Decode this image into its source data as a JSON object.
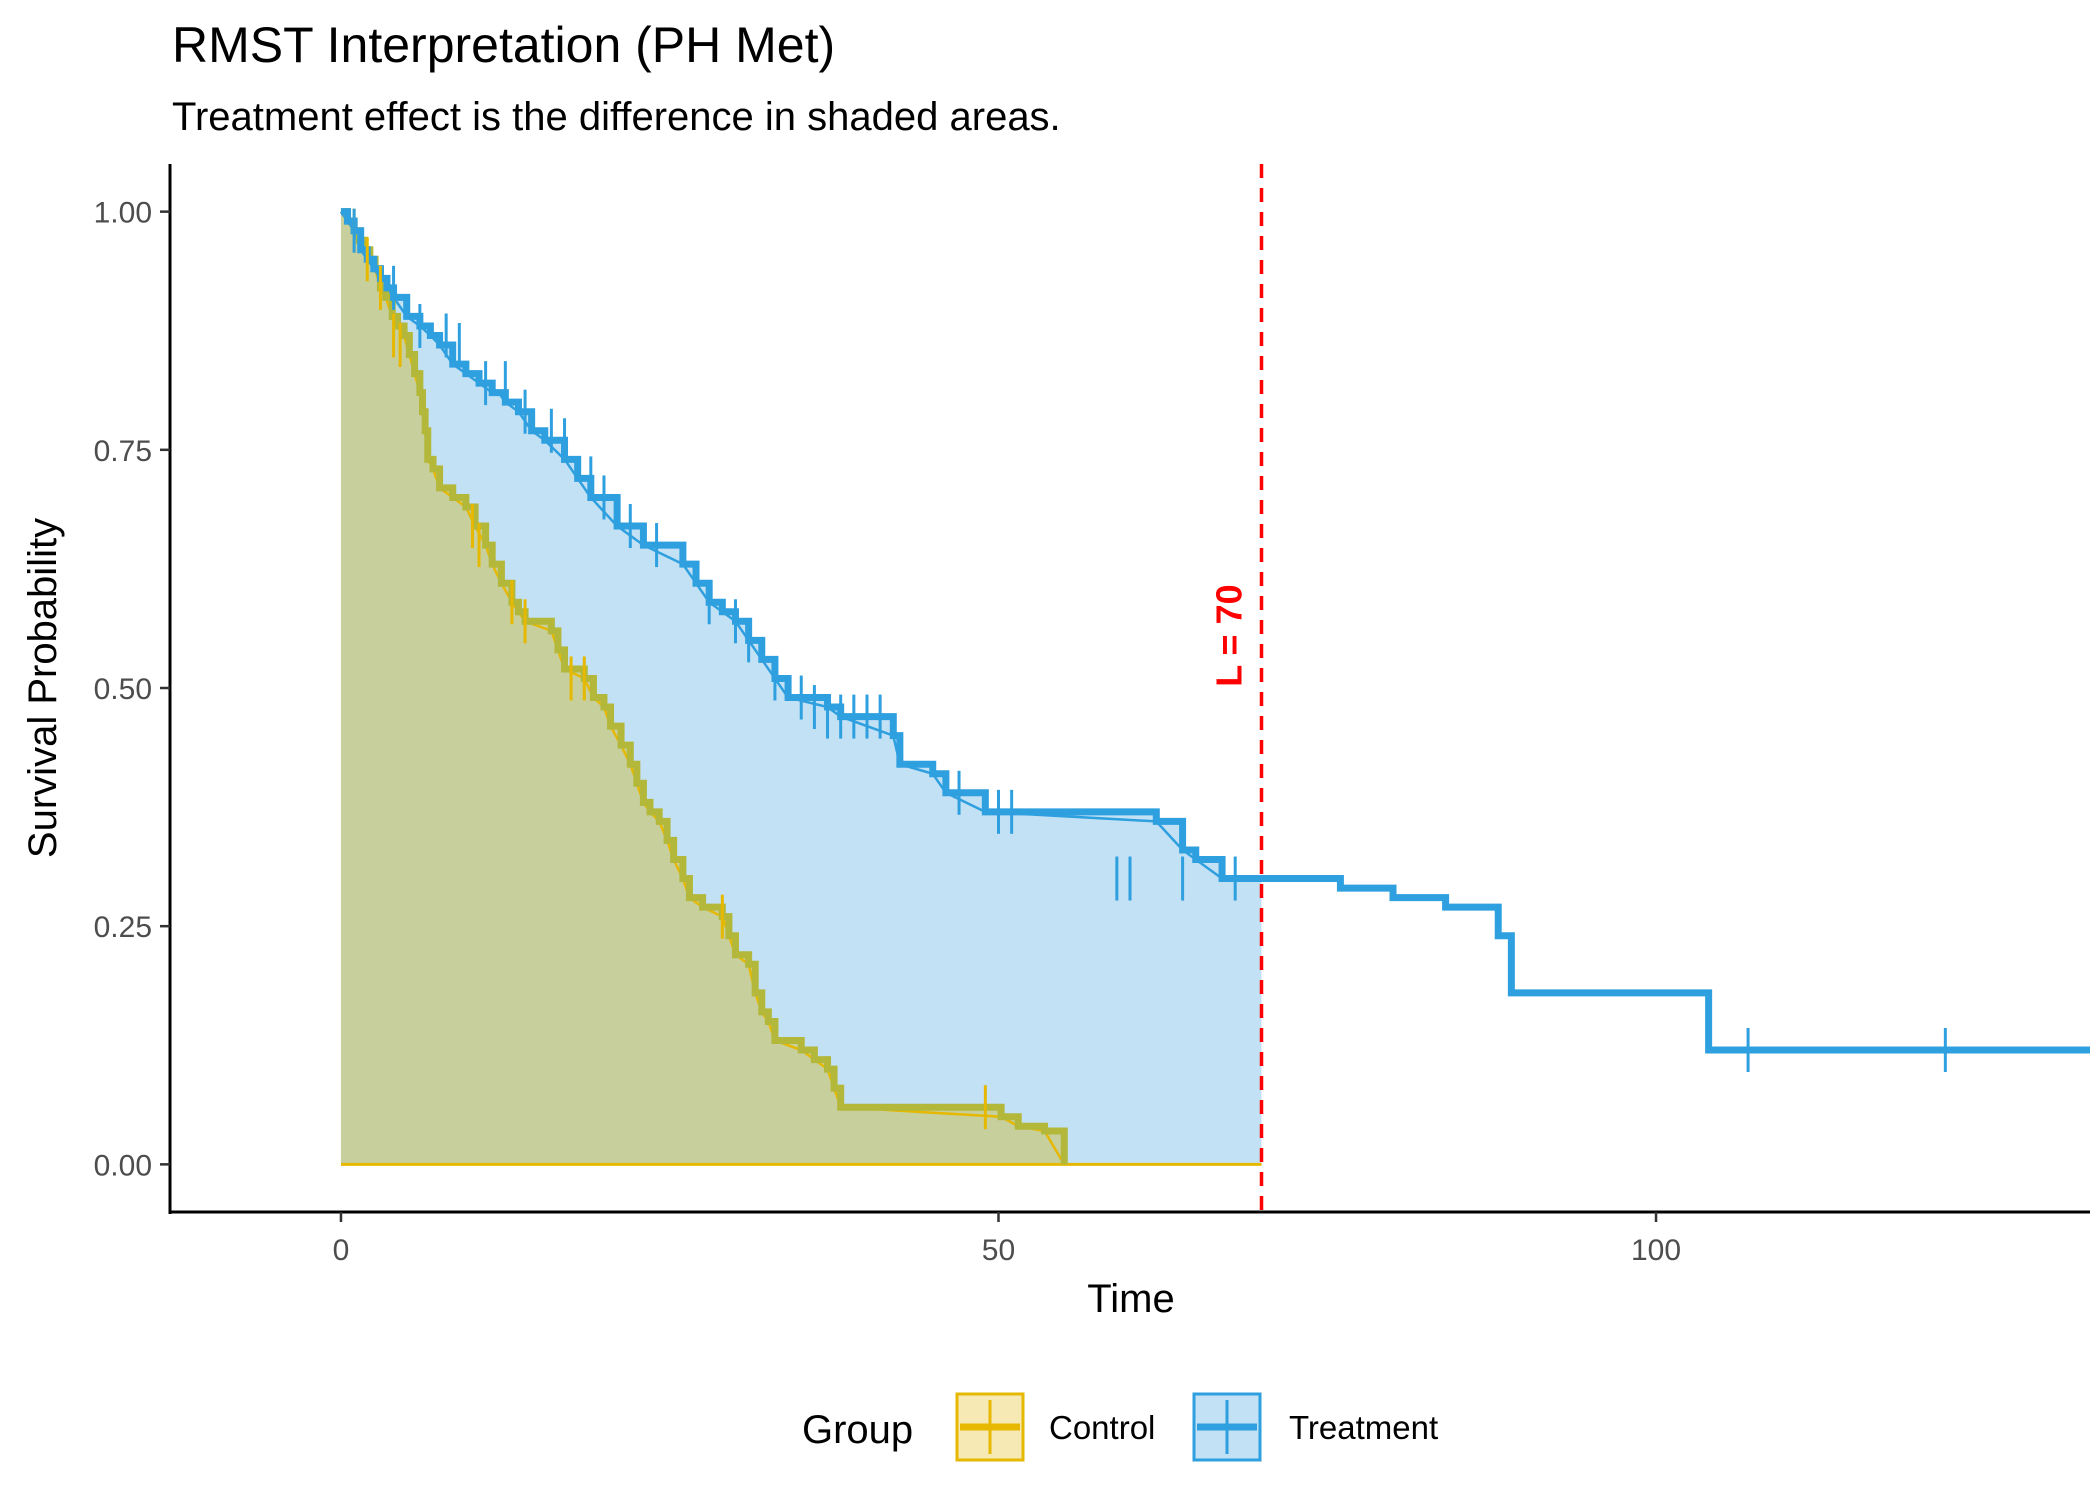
{
  "chart_data": {
    "type": "line",
    "title": "RMST Interpretation (PH Met)",
    "subtitle": "Treatment effect is the difference in shaded areas.",
    "xlabel": "Time",
    "ylabel": "Survival Probability",
    "xlim": [
      -13,
      133
    ],
    "ylim": [
      -0.05,
      1.05
    ],
    "x_ticks": [
      0,
      50,
      100
    ],
    "x_tick_labels": [
      "0",
      "50",
      "100"
    ],
    "y_ticks": [
      0,
      0.25,
      0.5,
      0.75,
      1.0
    ],
    "y_tick_labels": [
      "0.00",
      "0.25",
      "0.50",
      "0.75",
      "1.00"
    ],
    "grid": false,
    "legend": {
      "title": "Group",
      "position": "bottom"
    },
    "annotation": {
      "text": "L = 70",
      "x": 70,
      "color": "#FF0000"
    },
    "series": [
      {
        "name": "Control",
        "color": "#E6B800",
        "fill": "#C7CF9D",
        "steps": [
          [
            0,
            1.0
          ],
          [
            0.5,
            0.99
          ],
          [
            1,
            0.98
          ],
          [
            1.4,
            0.97
          ],
          [
            1.8,
            0.96
          ],
          [
            2.2,
            0.95
          ],
          [
            2.6,
            0.94
          ],
          [
            3,
            0.92
          ],
          [
            3.4,
            0.91
          ],
          [
            3.9,
            0.89
          ],
          [
            4.3,
            0.88
          ],
          [
            4.8,
            0.87
          ],
          [
            5.2,
            0.85
          ],
          [
            5.6,
            0.83
          ],
          [
            6,
            0.81
          ],
          [
            6.2,
            0.79
          ],
          [
            6.4,
            0.77
          ],
          [
            6.6,
            0.74
          ],
          [
            7,
            0.73
          ],
          [
            7.5,
            0.71
          ],
          [
            8.5,
            0.7
          ],
          [
            9.5,
            0.69
          ],
          [
            10.2,
            0.67
          ],
          [
            11,
            0.65
          ],
          [
            11.5,
            0.63
          ],
          [
            12.2,
            0.61
          ],
          [
            13,
            0.59
          ],
          [
            13.5,
            0.58
          ],
          [
            14,
            0.57
          ],
          [
            16,
            0.56
          ],
          [
            16.5,
            0.54
          ],
          [
            17,
            0.52
          ],
          [
            18.5,
            0.51
          ],
          [
            19.2,
            0.49
          ],
          [
            20,
            0.48
          ],
          [
            20.5,
            0.46
          ],
          [
            21.3,
            0.44
          ],
          [
            22,
            0.42
          ],
          [
            22.5,
            0.4
          ],
          [
            23,
            0.38
          ],
          [
            23.5,
            0.37
          ],
          [
            24.2,
            0.36
          ],
          [
            24.8,
            0.34
          ],
          [
            25.3,
            0.32
          ],
          [
            26,
            0.3
          ],
          [
            26.5,
            0.28
          ],
          [
            27.5,
            0.27
          ],
          [
            29,
            0.26
          ],
          [
            29.5,
            0.24
          ],
          [
            30,
            0.22
          ],
          [
            31,
            0.21
          ],
          [
            31.5,
            0.18
          ],
          [
            32,
            0.16
          ],
          [
            32.5,
            0.15
          ],
          [
            33,
            0.13
          ],
          [
            35,
            0.12
          ],
          [
            36,
            0.11
          ],
          [
            37,
            0.1
          ],
          [
            37.5,
            0.08
          ],
          [
            38,
            0.06
          ],
          [
            50.2,
            0.05
          ],
          [
            51.5,
            0.04
          ],
          [
            53.5,
            0.035
          ],
          [
            55,
            0.0
          ]
        ],
        "censor_times": [
          1,
          2,
          3,
          4,
          4.5,
          10,
          10.5,
          13,
          14,
          17.5,
          18.5,
          29,
          49
        ],
        "censor_values": [
          0.98,
          0.95,
          0.92,
          0.87,
          0.86,
          0.67,
          0.65,
          0.59,
          0.57,
          0.51,
          0.51,
          0.26,
          0.06
        ]
      },
      {
        "name": "Treatment",
        "color": "#2E9FDF",
        "fill": "#C3E1F4",
        "steps": [
          [
            0,
            1.0
          ],
          [
            0.5,
            0.99
          ],
          [
            1,
            0.98
          ],
          [
            1.5,
            0.96
          ],
          [
            2,
            0.95
          ],
          [
            2.5,
            0.94
          ],
          [
            3,
            0.93
          ],
          [
            3.5,
            0.92
          ],
          [
            4,
            0.91
          ],
          [
            5,
            0.89
          ],
          [
            6,
            0.88
          ],
          [
            6.8,
            0.87
          ],
          [
            7.5,
            0.86
          ],
          [
            8.5,
            0.84
          ],
          [
            9.5,
            0.83
          ],
          [
            10.5,
            0.82
          ],
          [
            11.5,
            0.81
          ],
          [
            12,
            0.81
          ],
          [
            12.5,
            0.8
          ],
          [
            13.5,
            0.79
          ],
          [
            14.5,
            0.77
          ],
          [
            15.5,
            0.76
          ],
          [
            17,
            0.74
          ],
          [
            18,
            0.72
          ],
          [
            19,
            0.7
          ],
          [
            21,
            0.67
          ],
          [
            23,
            0.65
          ],
          [
            26,
            0.63
          ],
          [
            27,
            0.61
          ],
          [
            28,
            0.59
          ],
          [
            29,
            0.58
          ],
          [
            30,
            0.57
          ],
          [
            31,
            0.55
          ],
          [
            32,
            0.53
          ],
          [
            33,
            0.51
          ],
          [
            34,
            0.49
          ],
          [
            37,
            0.48
          ],
          [
            38,
            0.47
          ],
          [
            42,
            0.45
          ],
          [
            42.5,
            0.42
          ],
          [
            45,
            0.41
          ],
          [
            46,
            0.39
          ],
          [
            49,
            0.37
          ],
          [
            62,
            0.36
          ],
          [
            64,
            0.33
          ],
          [
            65,
            0.32
          ],
          [
            67,
            0.3
          ],
          [
            76,
            0.29
          ],
          [
            80,
            0.28
          ],
          [
            84,
            0.27
          ],
          [
            88,
            0.24
          ],
          [
            89,
            0.18
          ],
          [
            104,
            0.12
          ],
          [
            133,
            0.12
          ]
        ],
        "censor_times": [
          1,
          4,
          6,
          8,
          9,
          11,
          12.5,
          14,
          16,
          17,
          19,
          20,
          22,
          24,
          28,
          30,
          31,
          33,
          35,
          36,
          37,
          38,
          39,
          40,
          41,
          47,
          50,
          51,
          59,
          60,
          64,
          68,
          107,
          122
        ],
        "censor_values": [
          0.98,
          0.92,
          0.88,
          0.87,
          0.86,
          0.82,
          0.82,
          0.79,
          0.77,
          0.76,
          0.72,
          0.7,
          0.67,
          0.65,
          0.59,
          0.57,
          0.55,
          0.51,
          0.49,
          0.48,
          0.47,
          0.47,
          0.47,
          0.47,
          0.47,
          0.39,
          0.37,
          0.37,
          0.3,
          0.3,
          0.3,
          0.3,
          0.12,
          0.12
        ]
      }
    ]
  }
}
